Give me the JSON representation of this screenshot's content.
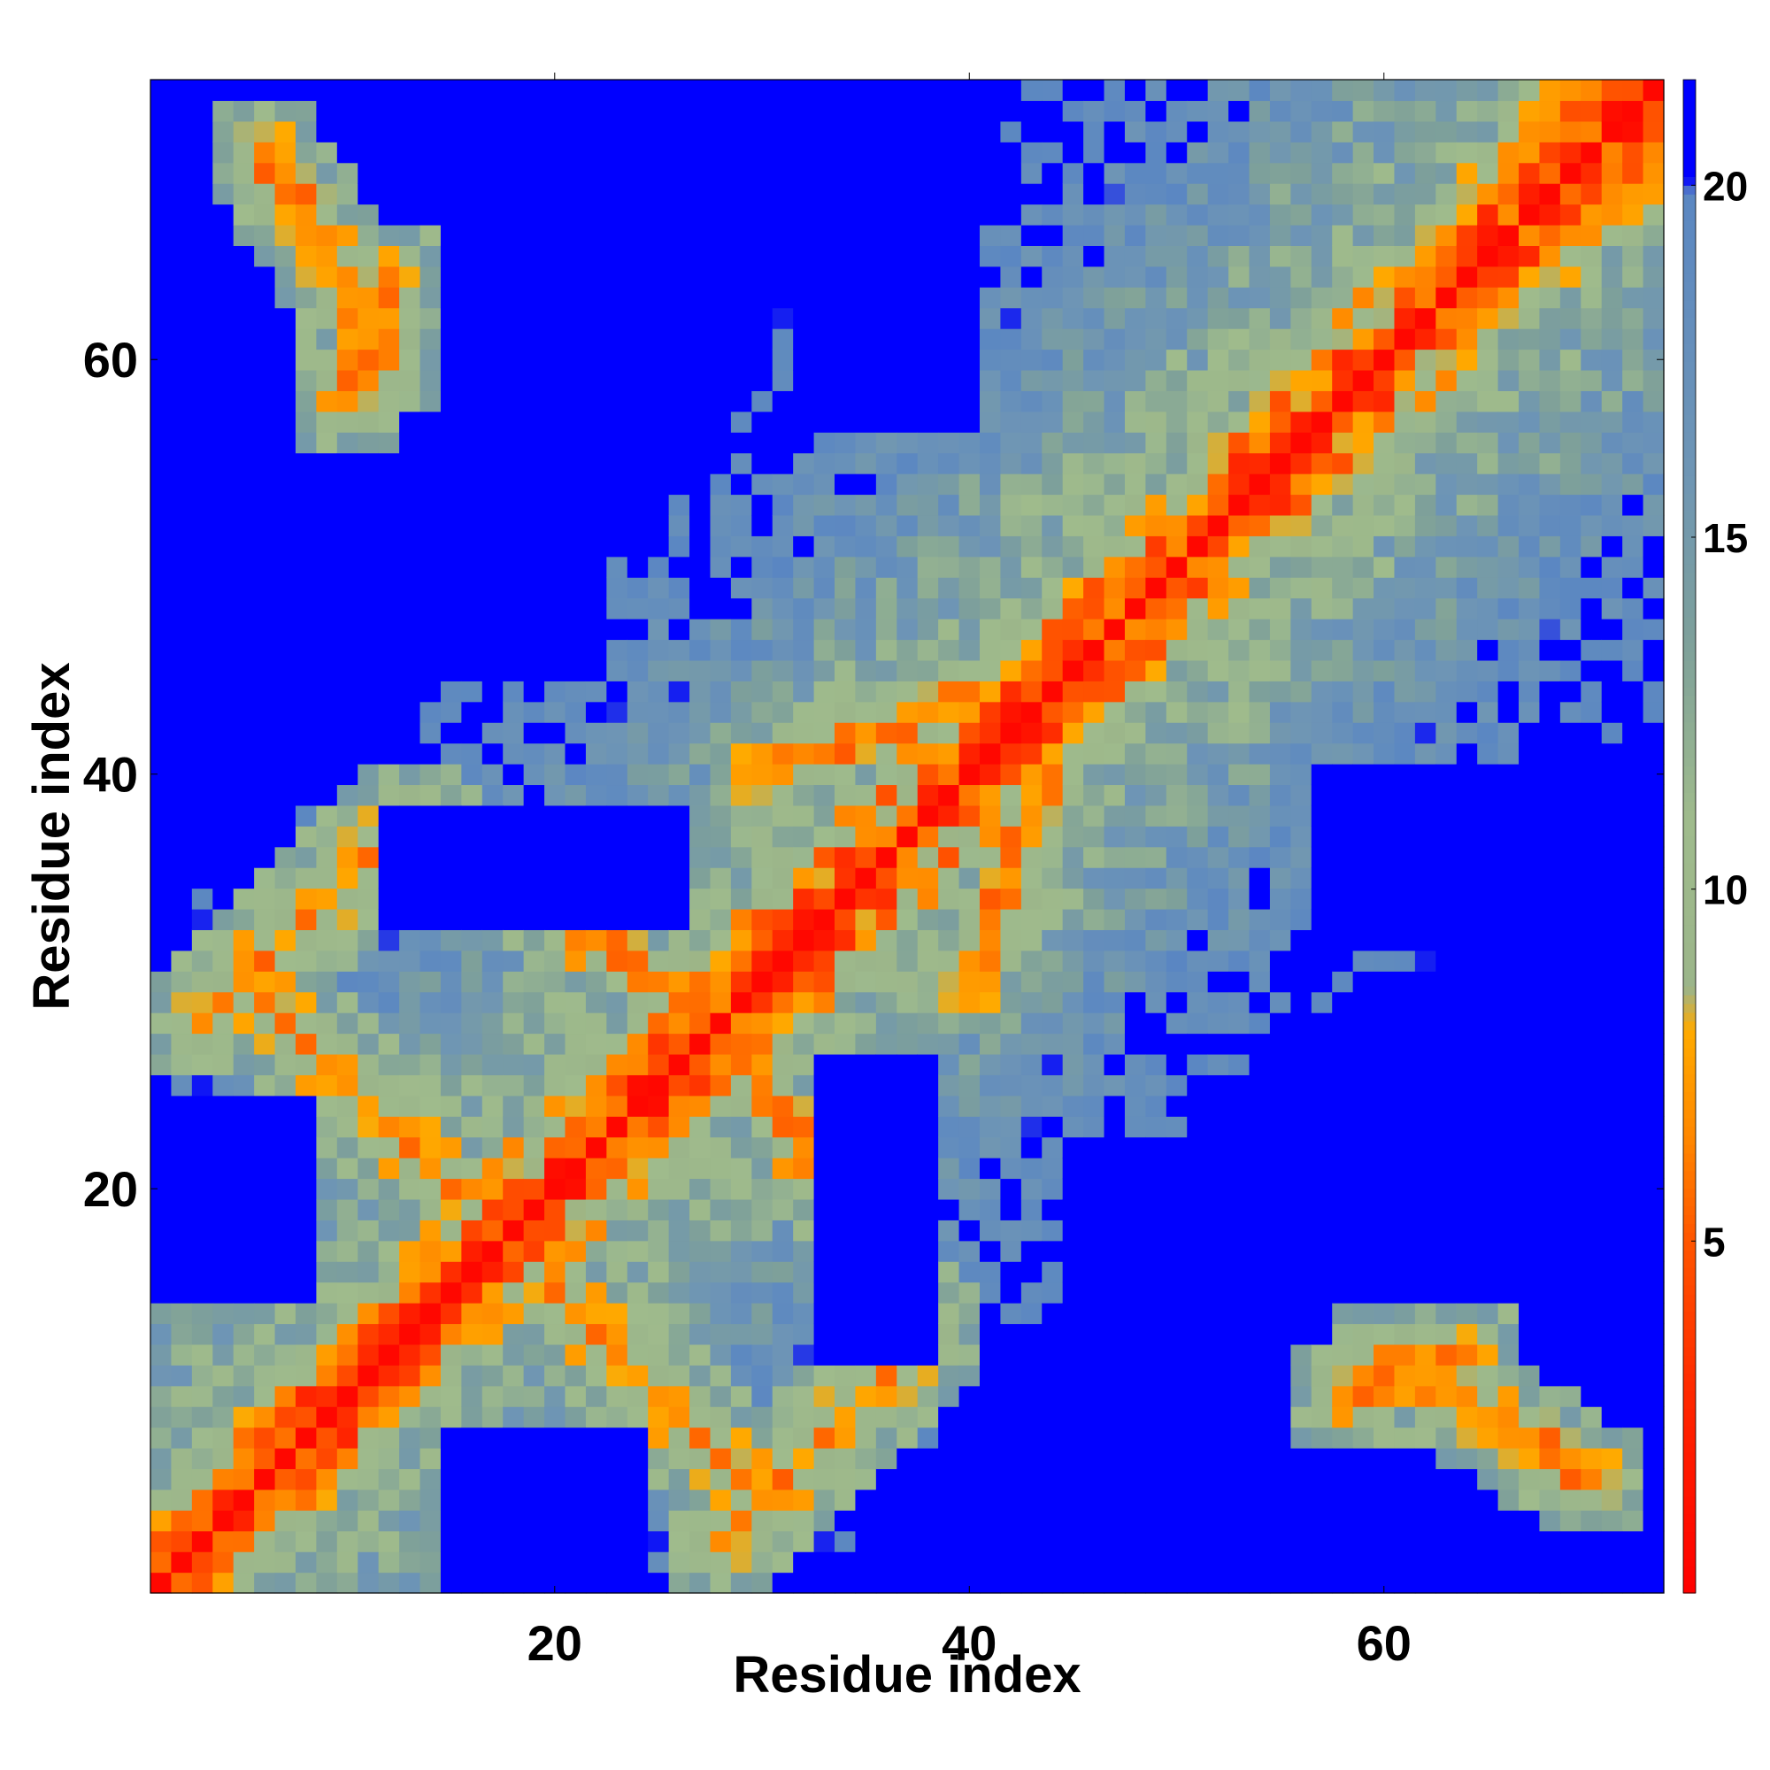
{
  "chart_data": {
    "type": "heatmap",
    "title": "",
    "xlabel": "Residue index",
    "ylabel": "Residue index",
    "x_range": [
      1,
      73
    ],
    "y_range": [
      1,
      73
    ],
    "x_ticks": [
      20,
      40,
      60
    ],
    "y_ticks": [
      20,
      40,
      60
    ],
    "colorbar": {
      "min": 0,
      "max": 21.5,
      "ticks": [
        5,
        10,
        15,
        20
      ],
      "stops": [
        {
          "value": 0,
          "color": "#ff0000"
        },
        {
          "value": 2.5,
          "color": "#ff2200"
        },
        {
          "value": 5,
          "color": "#ff5500"
        },
        {
          "value": 6.5,
          "color": "#ff8800"
        },
        {
          "value": 8,
          "color": "#ffaa00"
        },
        {
          "value": 8.6,
          "color": "#9bb58a"
        },
        {
          "value": 11,
          "color": "#9fbb8c"
        },
        {
          "value": 13.5,
          "color": "#7ea09a"
        },
        {
          "value": 16,
          "color": "#6e95b5"
        },
        {
          "value": 19.9,
          "color": "#5b87c2"
        },
        {
          "value": 20.1,
          "color": "#0000ff"
        },
        {
          "value": 21.5,
          "color": "#0000ff"
        }
      ]
    },
    "matrix_description": "symmetric pairwise residue distance map; diagonal ~0, beta-strand pair bands near-contact, distant blocks saturated above 20",
    "contact_features": [
      {
        "from": [
          3,
          28
        ],
        "to": [
          13,
          38
        ]
      },
      {
        "from": [
          13,
          38
        ],
        "to": [
          28,
          28
        ]
      },
      {
        "from": [
          20,
          15
        ],
        "to": [
          30,
          5
        ]
      },
      {
        "from": [
          30,
          40
        ],
        "to": [
          46,
          46
        ]
      },
      {
        "from": [
          12,
          60
        ],
        "to": [
          6,
          70
        ]
      },
      {
        "from": [
          58,
          10
        ],
        "to": [
          64,
          12
        ]
      },
      {
        "from": [
          62,
          64
        ],
        "to": [
          70,
          74
        ]
      }
    ],
    "far_blocks": [
      [
        16,
        24,
        4,
        8
      ],
      [
        1,
        8,
        15,
        24
      ],
      [
        33,
        38,
        12,
        26
      ],
      [
        15,
        26,
        33,
        38
      ],
      [
        23,
        28,
        55,
        62
      ],
      [
        32,
        40,
        58,
        72
      ],
      [
        57,
        63,
        32,
        40
      ],
      [
        55,
        65,
        16,
        22
      ],
      [
        63,
        73,
        34,
        40
      ],
      [
        45,
        53,
        16,
        22
      ],
      [
        16,
        22,
        45,
        53
      ]
    ]
  }
}
